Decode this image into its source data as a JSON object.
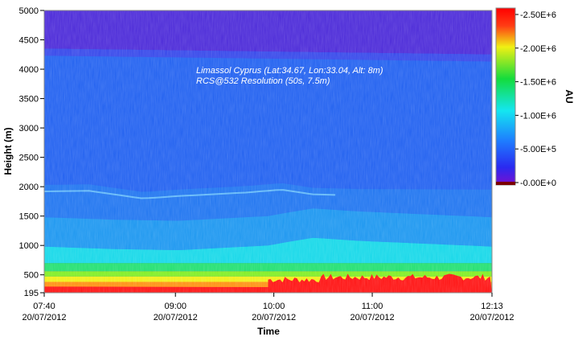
{
  "chart_data": {
    "type": "heatmap",
    "annotation": {
      "line1": "Limassol Cyprus (Lat:34.67, Lon:33.04, Alt: 8m)",
      "line2": "RCS@532 Resolution (50s, 7.5m)"
    },
    "xlabel": "Time",
    "ylabel": "Height (m)",
    "colorbar_label": "AU",
    "x_ticks": [
      {
        "time": "07:40",
        "date": "20/07/2012"
      },
      {
        "time": "09:00",
        "date": "20/07/2012"
      },
      {
        "time": "10:00",
        "date": "20/07/2012"
      },
      {
        "time": "11:00",
        "date": "20/07/2012"
      },
      {
        "time": "12:13",
        "date": "20/07/2012"
      }
    ],
    "x_range": [
      "07:40",
      "12:13"
    ],
    "y_ticks": [
      "5000",
      "4500",
      "4000",
      "3500",
      "3000",
      "2500",
      "2000",
      "1500",
      "1000",
      "500",
      "195"
    ],
    "y_range": [
      195,
      5000
    ],
    "colorbar_ticks": [
      "2.50E+6",
      "2.00E+6",
      "1.50E+6",
      "1.00E+6",
      "5.00E+5",
      "0.00E+0"
    ],
    "colorbar_range": [
      0,
      2500000
    ],
    "colorscale": [
      "#7a0fd0",
      "#2a2af0",
      "#1e7dff",
      "#14e6f0",
      "#14dc3c",
      "#f0f014",
      "#ff3c14",
      "#ff0000"
    ],
    "layers": {
      "mixed_layer_top_m": [
        [
          0,
          980
        ],
        [
          0.15,
          940
        ],
        [
          0.3,
          920
        ],
        [
          0.5,
          1000
        ],
        [
          0.56,
          1080
        ],
        [
          0.6,
          1130
        ],
        [
          0.7,
          1080
        ],
        [
          1,
          980
        ]
      ],
      "residual_layer_top_m": [
        [
          0,
          2030
        ],
        [
          0.1,
          2040
        ],
        [
          0.22,
          1910
        ],
        [
          0.3,
          1950
        ],
        [
          0.45,
          2010
        ],
        [
          0.53,
          2060
        ],
        [
          0.6,
          1980
        ],
        [
          0.7,
          1960
        ],
        [
          1,
          1950
        ]
      ],
      "free_troposphere_top_m": [
        [
          0,
          4350
        ],
        [
          0.5,
          4300
        ],
        [
          1,
          4250
        ]
      ]
    }
  }
}
